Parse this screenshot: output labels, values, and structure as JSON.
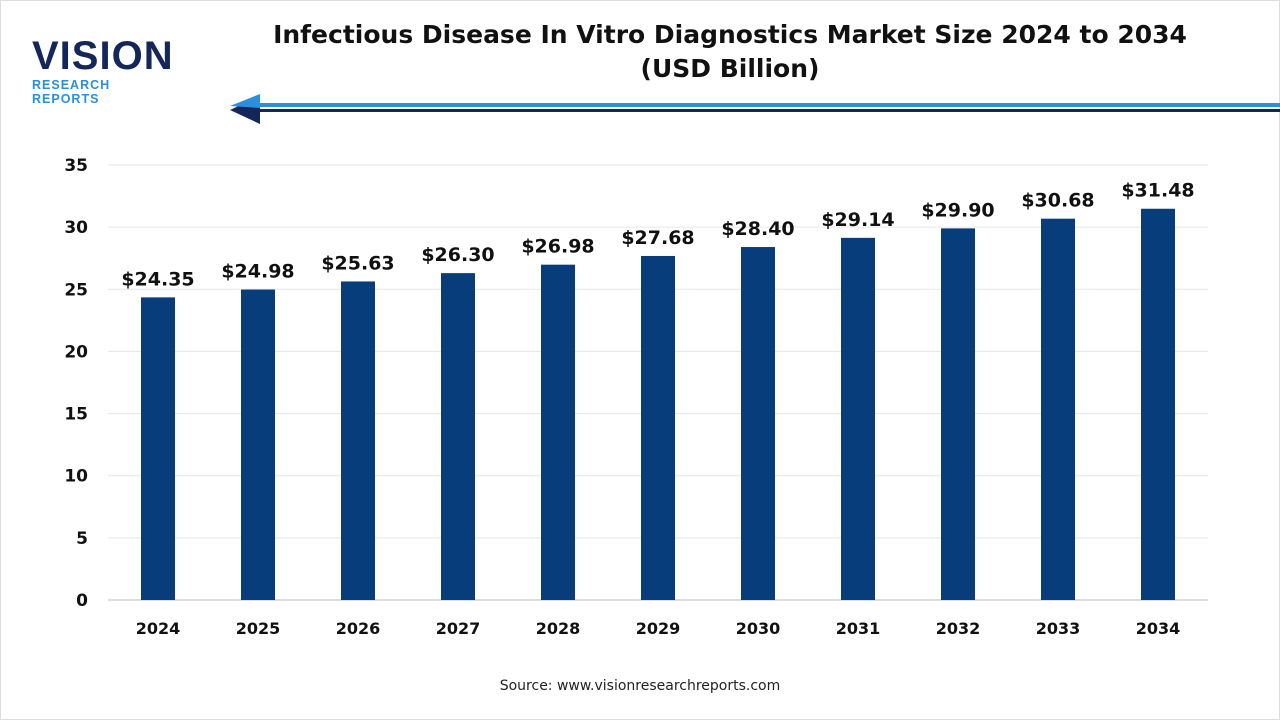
{
  "logo": {
    "main": "VISION",
    "sub": "RESEARCH REPORTS"
  },
  "title_line1": "Infectious Disease In Vitro Diagnostics Market Size 2024 to 2034",
  "title_line2": "(USD Billion)",
  "source": "Source: www.visionresearchreports.com",
  "colors": {
    "bar": "#083d7c",
    "logo_dark": "#14275a",
    "logo_light": "#2a8fdc",
    "grid": "#e6e6e6"
  },
  "chart_data": {
    "type": "bar",
    "title": "Infectious Disease In Vitro Diagnostics Market Size 2024 to 2034 (USD Billion)",
    "categories": [
      "2024",
      "2025",
      "2026",
      "2027",
      "2028",
      "2029",
      "2030",
      "2031",
      "2032",
      "2033",
      "2034"
    ],
    "values": [
      24.35,
      24.98,
      25.63,
      26.3,
      26.98,
      27.68,
      28.4,
      29.14,
      29.9,
      30.68,
      31.48
    ],
    "data_labels": [
      "$24.35",
      "$24.98",
      "$25.63",
      "$26.30",
      "$26.98",
      "$27.68",
      "$28.40",
      "$29.14",
      "$29.90",
      "$30.68",
      "$31.48"
    ],
    "yticks": [
      0,
      5,
      10,
      15,
      20,
      25,
      30,
      35
    ],
    "ylim": [
      0,
      35
    ],
    "xlabel": "",
    "ylabel": "",
    "grid": true,
    "legend": "none"
  }
}
